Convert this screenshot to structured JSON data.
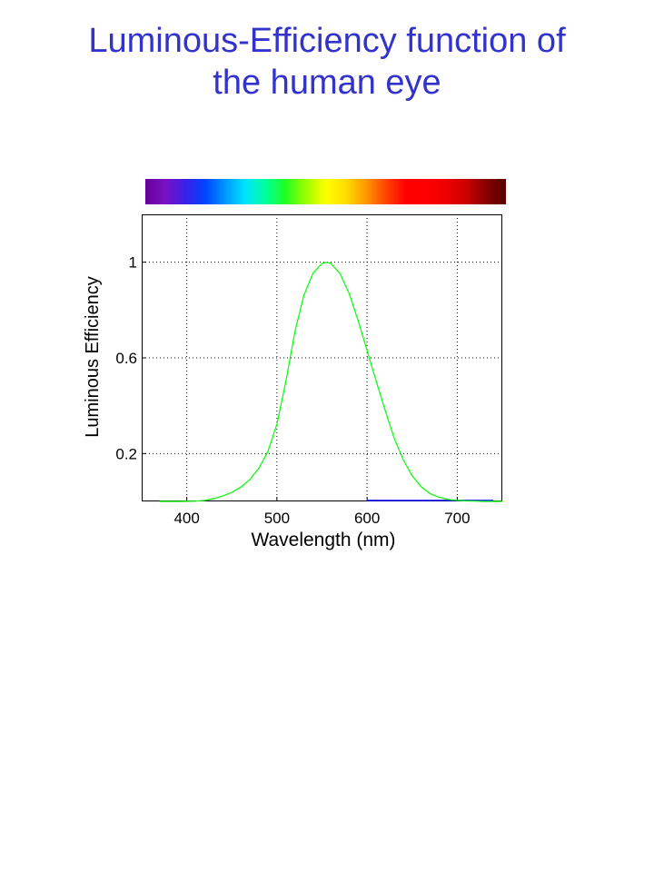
{
  "title": {
    "line1": "Luminous-Efficiency function of",
    "line2": "the human eye"
  },
  "colors": {
    "title": "#3333cc",
    "curve": "#00ff00",
    "baseline": "#0000ff",
    "axis": "#000000",
    "spectrum": [
      "#660099",
      "#7a10c4",
      "#3a20e8",
      "#0044ff",
      "#0099ff",
      "#00e5ff",
      "#00ff99",
      "#22ff22",
      "#99ff00",
      "#ffff00",
      "#ffdd00",
      "#ff9900",
      "#ff4400",
      "#ff0000",
      "#ff0000",
      "#ee0000",
      "#cc0000",
      "#880000",
      "#550000"
    ]
  },
  "chart_data": {
    "type": "line",
    "xlabel": "Wavelength (nm)",
    "ylabel": "Luminous Efficiency",
    "xlim": [
      350,
      750
    ],
    "ylim": [
      0,
      1.2
    ],
    "xticks": [
      400,
      500,
      600,
      700
    ],
    "xtick_labels": [
      "400",
      "500",
      "600",
      "700"
    ],
    "yticks": [
      0.2,
      0.6,
      1
    ],
    "ytick_labels": [
      "0.2",
      "0.6",
      "1"
    ],
    "grid": "dotted",
    "series": [
      {
        "x": [
          370,
          380,
          390,
          400,
          410,
          420,
          430,
          440,
          450,
          460,
          470,
          480,
          490,
          500,
          510,
          520,
          530,
          540,
          550,
          555,
          560,
          570,
          580,
          590,
          600,
          610,
          620,
          630,
          640,
          650,
          660,
          670,
          680,
          690,
          700,
          710,
          720,
          730,
          740,
          750
        ],
        "y": [
          0.0,
          0.0,
          0.0,
          0.0004,
          0.0012,
          0.004,
          0.0116,
          0.023,
          0.038,
          0.06,
          0.091,
          0.139,
          0.208,
          0.323,
          0.503,
          0.71,
          0.862,
          0.954,
          0.995,
          1.0,
          0.995,
          0.952,
          0.87,
          0.757,
          0.631,
          0.503,
          0.381,
          0.265,
          0.175,
          0.107,
          0.061,
          0.032,
          0.017,
          0.008,
          0.004,
          0.002,
          0.001,
          0.0,
          0.0,
          0.0
        ]
      }
    ]
  }
}
